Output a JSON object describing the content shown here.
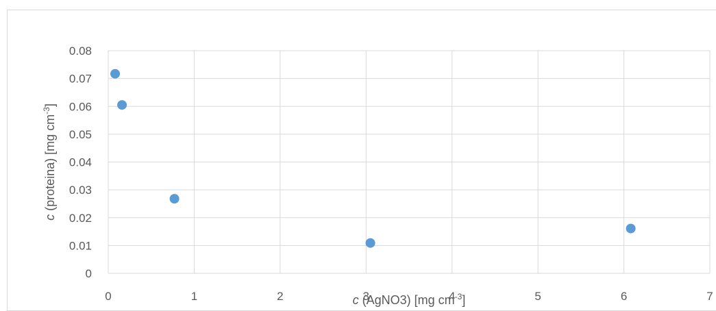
{
  "chart_data": {
    "type": "scatter",
    "series": [
      {
        "x": [
          0.08,
          0.16,
          0.77,
          3.05,
          6.08
        ],
        "y": [
          0.0717,
          0.0605,
          0.0268,
          0.0109,
          0.0161
        ]
      }
    ],
    "xlim": [
      0,
      7
    ],
    "ylim": [
      0,
      0.08
    ],
    "x_ticks": [
      0,
      1,
      2,
      3,
      4,
      5,
      6,
      7
    ],
    "x_tick_labels": [
      "0",
      "1",
      "2",
      "3",
      "4",
      "5",
      "6",
      "7"
    ],
    "y_ticks": [
      0,
      0.01,
      0.02,
      0.03,
      0.04,
      0.05,
      0.06,
      0.07,
      0.08
    ],
    "y_tick_labels": [
      "0",
      "0.01",
      "0.02",
      "0.03",
      "0.04",
      "0.05",
      "0.06",
      "0.07",
      "0.08"
    ],
    "xlabel": {
      "italic": "c",
      "text": " (AgNO3) [mg cm",
      "sup": "-3",
      "suffix": "]"
    },
    "ylabel": {
      "italic": "c",
      "text": " (proteina) [mg cm",
      "sup": "-3",
      "suffix": "]"
    },
    "grid": true,
    "marker_color": "#5B9BD5",
    "grid_color": "#d9d9d9"
  }
}
